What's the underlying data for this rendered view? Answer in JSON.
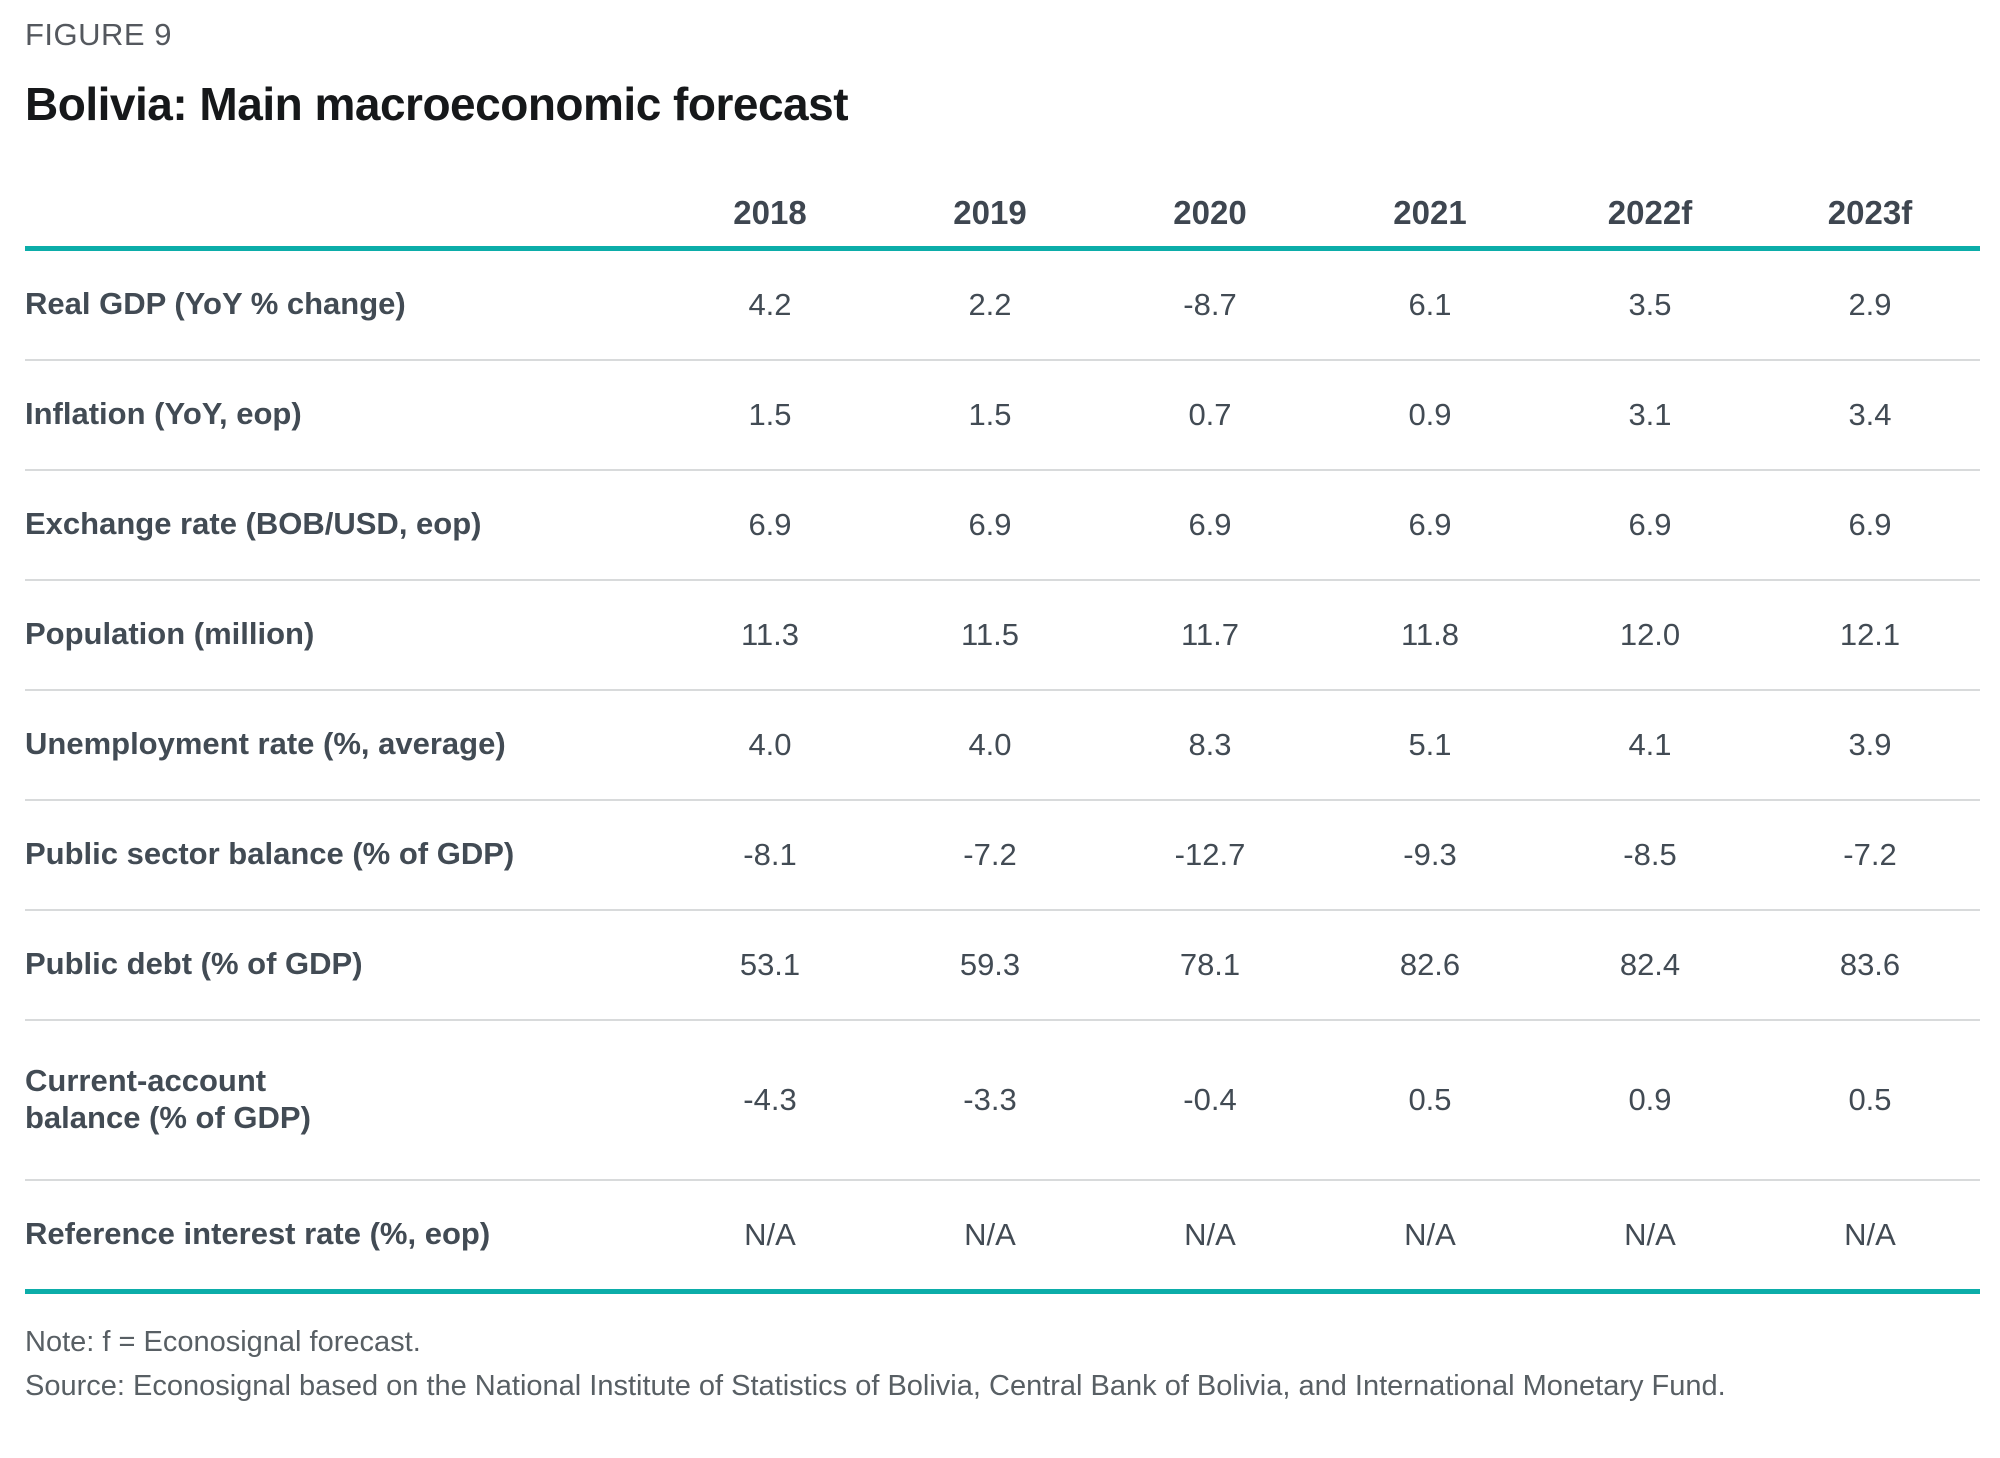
{
  "figure_label": "FIGURE 9",
  "title": "Bolivia: Main macroeconomic forecast",
  "colors": {
    "accent_teal": "#0cada9",
    "row_separator": "#d8dadb",
    "table_text": "#424b54",
    "figure_label_gray": "#54585e",
    "footer_gray": "#585f64"
  },
  "table": {
    "columns": [
      "2018",
      "2019",
      "2020",
      "2021",
      "2022f",
      "2023f"
    ],
    "rows": [
      {
        "label": "Real GDP (YoY % change)",
        "values": [
          "4.2",
          "2.2",
          "-8.7",
          "6.1",
          "3.5",
          "2.9"
        ]
      },
      {
        "label": "Inflation (YoY, eop)",
        "values": [
          "1.5",
          "1.5",
          "0.7",
          "0.9",
          "3.1",
          "3.4"
        ]
      },
      {
        "label": "Exchange rate (BOB/USD, eop)",
        "values": [
          "6.9",
          "6.9",
          "6.9",
          "6.9",
          "6.9",
          "6.9"
        ]
      },
      {
        "label": "Population (million)",
        "values": [
          "11.3",
          "11.5",
          "11.7",
          "11.8",
          "12.0",
          "12.1"
        ]
      },
      {
        "label": "Unemployment rate (%, average)",
        "values": [
          "4.0",
          "4.0",
          "8.3",
          "5.1",
          "4.1",
          "3.9"
        ]
      },
      {
        "label": "Public sector balance (% of GDP)",
        "values": [
          "-8.1",
          "-7.2",
          "-12.7",
          "-9.3",
          "-8.5",
          "-7.2"
        ]
      },
      {
        "label": "Public debt (% of GDP)",
        "values": [
          "53.1",
          "59.3",
          "78.1",
          "82.6",
          "82.4",
          "83.6"
        ]
      },
      {
        "label": "Current-account\nbalance (% of GDP)",
        "values": [
          "-4.3",
          "-3.3",
          "-0.4",
          "0.5",
          "0.9",
          "0.5"
        ]
      },
      {
        "label": "Reference interest rate (%, eop)",
        "values": [
          "N/A",
          "N/A",
          "N/A",
          "N/A",
          "N/A",
          "N/A"
        ]
      }
    ]
  },
  "chart_data": {
    "type": "table",
    "title": "Bolivia: Main macroeconomic forecast",
    "categories": [
      "2018",
      "2019",
      "2020",
      "2021",
      "2022f",
      "2023f"
    ],
    "series": [
      {
        "name": "Real GDP (YoY % change)",
        "values": [
          4.2,
          2.2,
          -8.7,
          6.1,
          3.5,
          2.9
        ]
      },
      {
        "name": "Inflation (YoY, eop)",
        "values": [
          1.5,
          1.5,
          0.7,
          0.9,
          3.1,
          3.4
        ]
      },
      {
        "name": "Exchange rate (BOB/USD, eop)",
        "values": [
          6.9,
          6.9,
          6.9,
          6.9,
          6.9,
          6.9
        ]
      },
      {
        "name": "Population (million)",
        "values": [
          11.3,
          11.5,
          11.7,
          11.8,
          12.0,
          12.1
        ]
      },
      {
        "name": "Unemployment rate (%, average)",
        "values": [
          4.0,
          4.0,
          8.3,
          5.1,
          4.1,
          3.9
        ]
      },
      {
        "name": "Public sector balance (% of GDP)",
        "values": [
          -8.1,
          -7.2,
          -12.7,
          -9.3,
          -8.5,
          -7.2
        ]
      },
      {
        "name": "Public debt (% of GDP)",
        "values": [
          53.1,
          59.3,
          78.1,
          82.6,
          82.4,
          83.6
        ]
      },
      {
        "name": "Current-account balance (% of GDP)",
        "values": [
          -4.3,
          -3.3,
          -0.4,
          0.5,
          0.9,
          0.5
        ]
      },
      {
        "name": "Reference interest rate (%, eop)",
        "values": [
          "N/A",
          "N/A",
          "N/A",
          "N/A",
          "N/A",
          "N/A"
        ]
      }
    ]
  },
  "footer": {
    "note": "Note: f = Econosignal forecast.",
    "source": "Source: Econosignal based on the National Institute of Statistics of Bolivia, Central Bank of Bolivia, and International Monetary Fund."
  }
}
